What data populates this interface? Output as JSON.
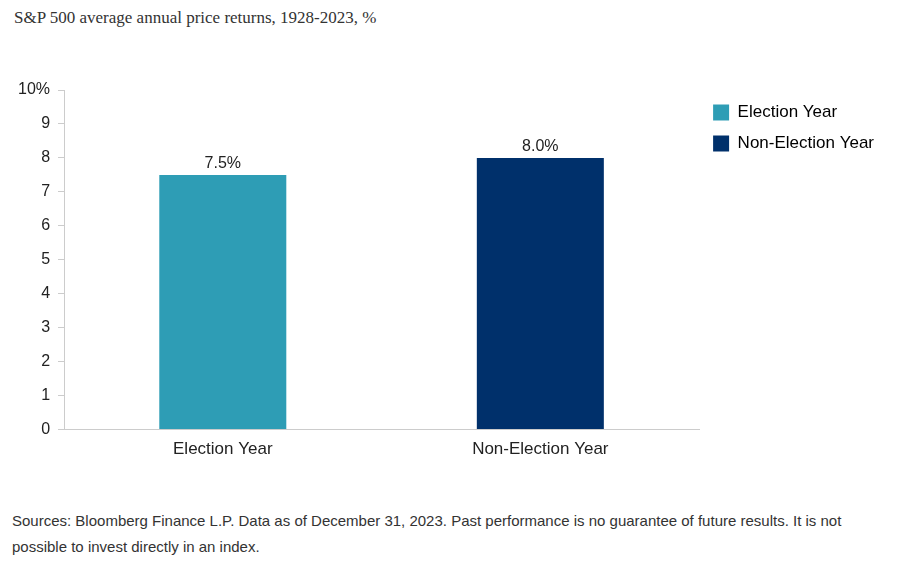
{
  "chart_data": {
    "type": "bar",
    "title": "S&P 500 average annual price returns, 1928-2023, %",
    "categories": [
      "Election Year",
      "Non-Election Year"
    ],
    "values": [
      7.5,
      8.0
    ],
    "value_labels": [
      "7.5%",
      "8.0%"
    ],
    "colors": [
      "#2e9db5",
      "#00306b"
    ],
    "ylim": [
      0,
      10
    ],
    "yticks": [
      0,
      1,
      2,
      3,
      4,
      5,
      6,
      7,
      8,
      9,
      {
        "value": 10,
        "label": "10%"
      }
    ],
    "grid": false,
    "legend": "upper right",
    "data_labels": true,
    "note": "Sources: Bloomberg Finance L.P. Data as of December 31, 2023. Past performance is no guarantee of future results. It is not possible to invest directly in an index."
  }
}
